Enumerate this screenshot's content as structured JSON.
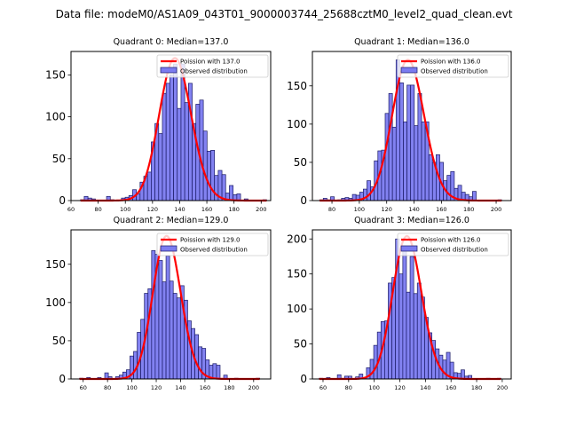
{
  "figure": {
    "suptitle": "Data file: modeM0/AS1A09_043T01_9000003744_25688cztM0_level2_quad_clean.evt"
  },
  "colors": {
    "bar_fill": "#7b7bf0",
    "bar_edge": "#1a1a66",
    "fit_line": "#ff0000",
    "legend_bg": "#ffffff"
  },
  "chart_data": [
    {
      "type": "bar",
      "title": "Quadrant 0: Median=137.0",
      "legend": [
        "Poission with 137.0",
        "Observed distribution"
      ],
      "legend_position": "top-right",
      "xlim": [
        60,
        207
      ],
      "ylim": [
        0,
        178
      ],
      "xticks": [
        60,
        80,
        100,
        120,
        140,
        160,
        180,
        200
      ],
      "yticks": [
        0,
        50,
        100,
        150
      ],
      "bin_start": 67,
      "bin_width": 2.74,
      "values": [
        1,
        5,
        3,
        2,
        0,
        0,
        0,
        5,
        1,
        0,
        0,
        3,
        4,
        6,
        13,
        8,
        22,
        29,
        34,
        70,
        92,
        80,
        128,
        140,
        150,
        163,
        110,
        163,
        117,
        140,
        92,
        115,
        120,
        83,
        59,
        60,
        30,
        36,
        31,
        9,
        18,
        7,
        8,
        0,
        2,
        0,
        0,
        0,
        0,
        1
      ],
      "poisson_mean": 137.0,
      "poisson_scale": 170
    },
    {
      "type": "bar",
      "title": "Quadrant 1: Median=136.0",
      "legend": [
        "Poission with 136.0",
        "Observed distribution"
      ],
      "legend_position": "top-right",
      "xlim": [
        65.7,
        211
      ],
      "ylim": [
        0,
        195
      ],
      "xticks": [
        80,
        100,
        120,
        140,
        160,
        180,
        200
      ],
      "yticks": [
        0,
        50,
        100,
        150
      ],
      "bin_start": 71,
      "bin_width": 2.66,
      "values": [
        1,
        3,
        1,
        5,
        0,
        1,
        3,
        4,
        3,
        8,
        7,
        11,
        15,
        26,
        18,
        52,
        65,
        66,
        114,
        140,
        96,
        184,
        154,
        103,
        151,
        151,
        98,
        140,
        103,
        103,
        60,
        50,
        60,
        50,
        26,
        33,
        38,
        16,
        20,
        11,
        8,
        5,
        12,
        0,
        0,
        0,
        0,
        0,
        0,
        1
      ],
      "poisson_mean": 136.0,
      "poisson_scale": 184
    },
    {
      "type": "bar",
      "title": "Quadrant 2: Median=129.0",
      "legend": [
        "Poission with 129.0",
        "Observed distribution"
      ],
      "legend_position": "top-right",
      "xlim": [
        50,
        214
      ],
      "ylim": [
        0,
        195
      ],
      "xticks": [
        60,
        80,
        100,
        120,
        140,
        160,
        180,
        200
      ],
      "yticks": [
        0,
        50,
        100,
        150
      ],
      "bin_start": 57,
      "bin_width": 2.96,
      "values": [
        1,
        0,
        2,
        0,
        0,
        2,
        0,
        8,
        3,
        0,
        3,
        5,
        9,
        12,
        30,
        36,
        61,
        78,
        112,
        118,
        168,
        163,
        155,
        127,
        161,
        128,
        112,
        106,
        122,
        103,
        76,
        66,
        58,
        42,
        40,
        25,
        18,
        20,
        18,
        0,
        5,
        0,
        0,
        1,
        0,
        0,
        0,
        0,
        0,
        1
      ],
      "poisson_mean": 129.0,
      "poisson_scale": 187
    },
    {
      "type": "bar",
      "title": "Quadrant 3: Median=126.0",
      "legend": [
        "Poission with 126.0",
        "Observed distribution"
      ],
      "legend_position": "top-right",
      "xlim": [
        51.7,
        207
      ],
      "ylim": [
        0,
        213
      ],
      "xticks": [
        60,
        80,
        100,
        120,
        140,
        160,
        180,
        200
      ],
      "yticks": [
        0,
        50,
        100,
        150,
        200
      ],
      "bin_start": 57,
      "bin_width": 2.84,
      "values": [
        1,
        0,
        2,
        0,
        0,
        6,
        1,
        4,
        4,
        0,
        3,
        7,
        2,
        16,
        28,
        48,
        67,
        82,
        83,
        137,
        145,
        200,
        150,
        188,
        124,
        175,
        122,
        137,
        117,
        88,
        66,
        55,
        43,
        34,
        27,
        38,
        24,
        9,
        8,
        13,
        4,
        5,
        0,
        0,
        0,
        0,
        1,
        0,
        0,
        1
      ],
      "poisson_mean": 126.0,
      "poisson_scale": 204
    }
  ]
}
